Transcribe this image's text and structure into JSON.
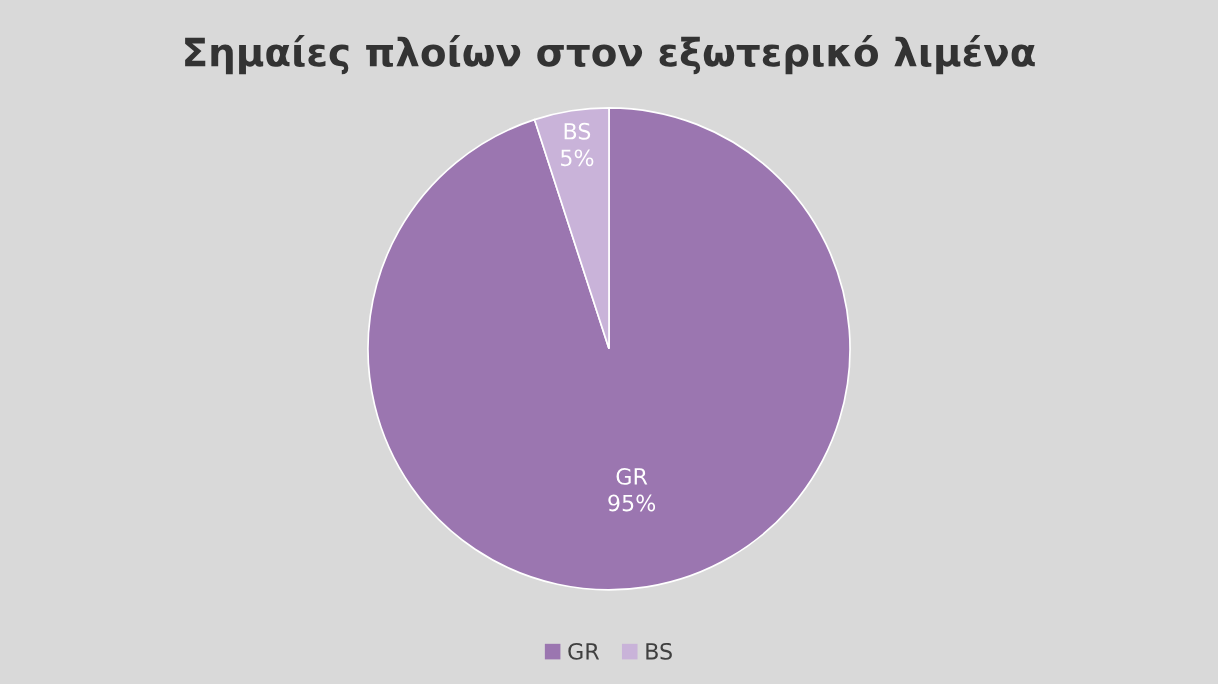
{
  "chart_data": {
    "type": "pie",
    "title": "Σημαίες πλοίων στον εξωτερικό λιμένα",
    "categories": [
      "GR",
      "BS"
    ],
    "values": [
      95,
      5
    ],
    "colors": [
      "#9b76b0",
      "#c9b3d9"
    ],
    "value_labels": [
      "95%",
      "5%"
    ],
    "legend": "bottom"
  }
}
